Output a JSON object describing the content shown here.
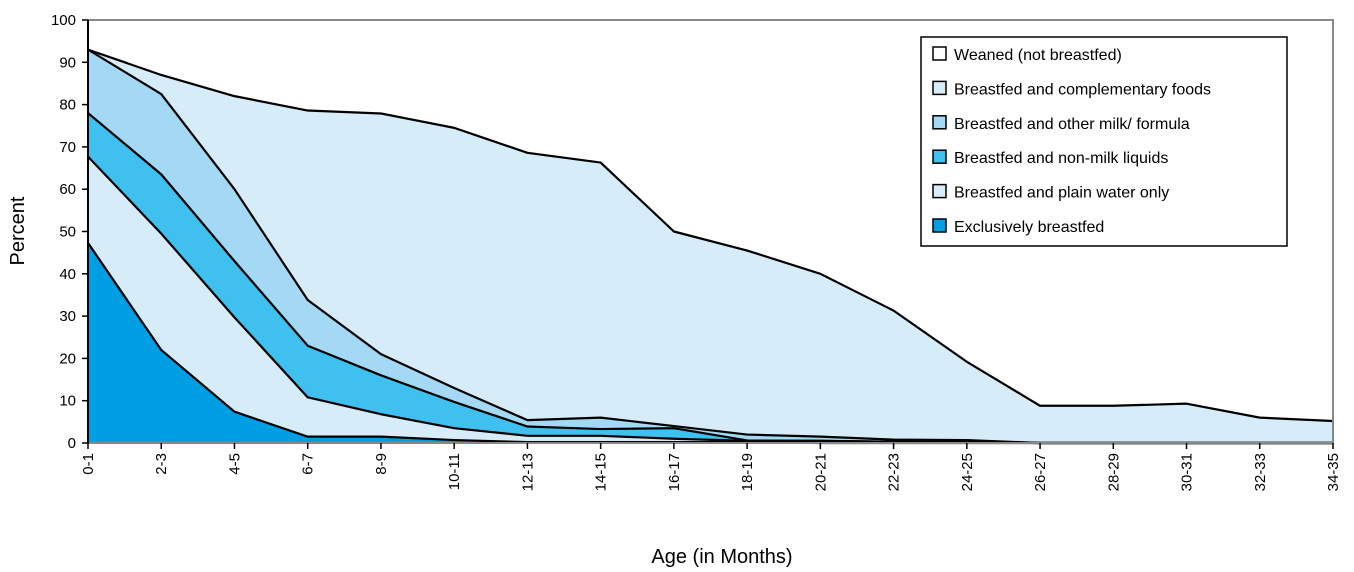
{
  "chart_data": {
    "type": "area",
    "stacked": true,
    "xlabel": "Age (in Months)",
    "ylabel": "Percent",
    "ylim": [
      0,
      100
    ],
    "yticks": [
      0,
      10,
      20,
      30,
      40,
      50,
      60,
      70,
      80,
      90,
      100
    ],
    "categories": [
      "0-1",
      "2-3",
      "4-5",
      "6-7",
      "8-9",
      "10-11",
      "12-13",
      "14-15",
      "16-17",
      "18-19",
      "20-21",
      "22-23",
      "24-25",
      "26-27",
      "28-29",
      "30-31",
      "32-33",
      "34-35"
    ],
    "grid": false,
    "legend_position": "top-right",
    "series": [
      {
        "name": "Exclusively breastfed",
        "color": "#009fe3",
        "values": [
          47.3,
          22.0,
          7.4,
          1.5,
          1.5,
          0.7,
          0.2,
          0.2,
          0.2,
          0.2,
          0,
          0,
          0,
          0,
          0,
          0,
          0,
          0
        ]
      },
      {
        "name": "Breastfed and plain water only",
        "color": "#d6ecf8",
        "values": [
          20.4,
          27.5,
          22.3,
          9.3,
          5.3,
          2.8,
          1.5,
          1.5,
          0.8,
          0.3,
          0.5,
          0.3,
          0.2,
          0,
          0,
          0,
          0,
          0
        ]
      },
      {
        "name": "Breastfed and non-milk liquids",
        "color": "#3fc0ef",
        "values": [
          10.3,
          14.0,
          13.3,
          12.2,
          9.2,
          6.2,
          2.2,
          1.6,
          2.5,
          0.1,
          0,
          0,
          0,
          0,
          0,
          0,
          0,
          0
        ]
      },
      {
        "name": "Breastfed and other milk/ formula",
        "color": "#a3d9f4",
        "values": [
          15.0,
          19.0,
          17.0,
          10.8,
          5.0,
          3.3,
          1.5,
          2.7,
          0.5,
          1.4,
          1.0,
          0.5,
          0.5,
          0,
          0,
          0,
          0,
          0
        ]
      },
      {
        "name": "Breastfed and complementary foods",
        "color": "#d6ecf8",
        "values": [
          0,
          4.5,
          22.0,
          44.8,
          56.9,
          61.5,
          63.2,
          60.3,
          46.0,
          43.5,
          38.5,
          30.5,
          18.5,
          8.8,
          8.8,
          9.3,
          6.0,
          5.2
        ]
      },
      {
        "name": "Weaned (not breastfed)",
        "color": "#ffffff",
        "values": [
          7.0,
          13.0,
          18.0,
          21.4,
          22.1,
          25.5,
          31.4,
          33.7,
          50.0,
          54.5,
          60.0,
          68.7,
          80.8,
          91.2,
          91.2,
          90.7,
          94.0,
          94.8
        ]
      }
    ]
  }
}
